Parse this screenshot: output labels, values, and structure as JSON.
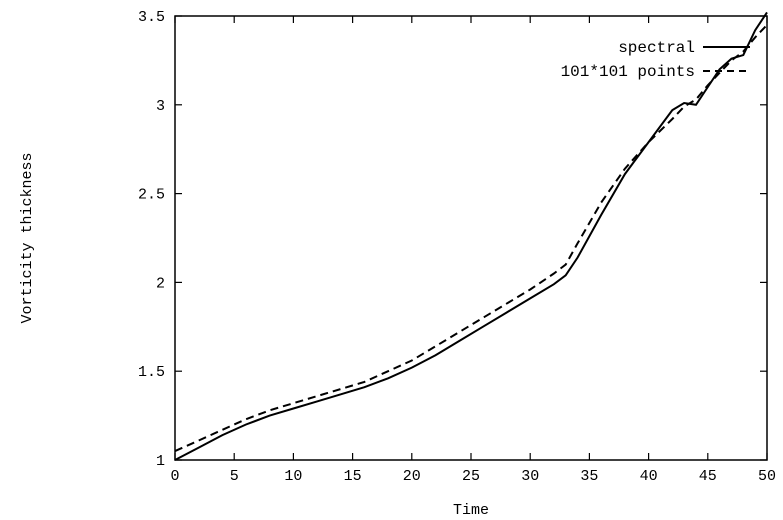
{
  "chart_data": {
    "type": "line",
    "title": "",
    "xlabel": "Time",
    "ylabel": "Vorticity thickness",
    "xlim": [
      0,
      50
    ],
    "ylim": [
      1,
      3.5
    ],
    "grid": false,
    "legend_position": "top-right",
    "xticks": [
      "0",
      "5",
      "10",
      "15",
      "20",
      "25",
      "30",
      "35",
      "40",
      "45",
      "50"
    ],
    "yticks": [
      "1",
      "1.5",
      "2",
      "2.5",
      "3",
      "3.5"
    ],
    "series": [
      {
        "name": "spectral",
        "style": "solid",
        "x": [
          0,
          2,
          4,
          6,
          8,
          10,
          12,
          14,
          16,
          18,
          20,
          22,
          24,
          26,
          28,
          30,
          32,
          33,
          34,
          36,
          38,
          40,
          42,
          43,
          44,
          45,
          46,
          47,
          48,
          49,
          50
        ],
        "y": [
          1.0,
          1.07,
          1.14,
          1.2,
          1.25,
          1.29,
          1.33,
          1.37,
          1.41,
          1.46,
          1.52,
          1.59,
          1.67,
          1.75,
          1.83,
          1.91,
          1.99,
          2.04,
          2.14,
          2.38,
          2.61,
          2.79,
          2.97,
          3.01,
          3.0,
          3.1,
          3.2,
          3.26,
          3.28,
          3.42,
          3.52
        ]
      },
      {
        "name": "101*101 points",
        "style": "dashed",
        "x": [
          0,
          2,
          4,
          6,
          8,
          10,
          12,
          14,
          16,
          18,
          20,
          22,
          24,
          26,
          28,
          30,
          32,
          33,
          34,
          36,
          38,
          40,
          42,
          43,
          44,
          45,
          46,
          47,
          48,
          49,
          50
        ],
        "y": [
          1.05,
          1.11,
          1.17,
          1.23,
          1.28,
          1.32,
          1.36,
          1.4,
          1.44,
          1.5,
          1.56,
          1.64,
          1.72,
          1.8,
          1.88,
          1.96,
          2.05,
          2.1,
          2.22,
          2.45,
          2.64,
          2.79,
          2.92,
          2.99,
          3.03,
          3.11,
          3.18,
          3.25,
          3.3,
          3.38,
          3.45
        ]
      }
    ]
  }
}
